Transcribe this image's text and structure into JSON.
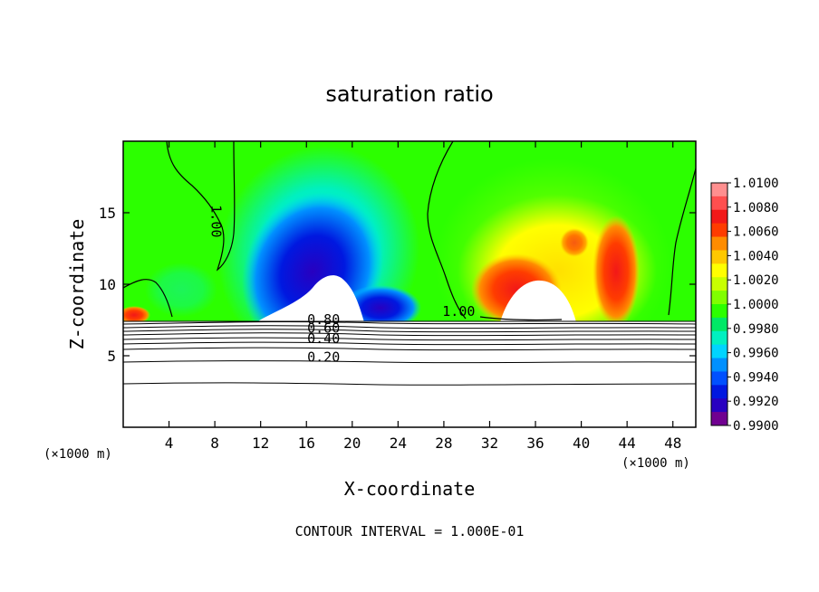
{
  "chart_data": {
    "type": "heatmap",
    "title": "saturation ratio",
    "xlabel": "X-coordinate",
    "ylabel": "Z-coordinate",
    "x_unit_left": "(×1000 m)",
    "x_unit_right": "(×1000 m)",
    "xlim": [
      0,
      50
    ],
    "ylim": [
      0,
      20
    ],
    "x_ticks": [
      4,
      8,
      12,
      16,
      20,
      24,
      28,
      32,
      36,
      40,
      44,
      48
    ],
    "x_tick_labels": [
      "4",
      "8",
      "12",
      "16",
      "20",
      "24",
      "28",
      "32",
      "36",
      "40",
      "44",
      "48"
    ],
    "y_ticks": [
      5,
      10,
      15
    ],
    "y_tick_labels": [
      "5",
      "10",
      "15"
    ],
    "colorbar": {
      "min": 0.99,
      "max": 1.01,
      "labels": [
        "1.0100",
        "1.0080",
        "1.0060",
        "1.0040",
        "1.0020",
        "1.0000",
        "0.9980",
        "0.9960",
        "0.9940",
        "0.9920",
        "0.9900"
      ],
      "colors": [
        "#ff8f8f",
        "#ff4f4f",
        "#f21818",
        "#ff3c00",
        "#ff8c00",
        "#ffc800",
        "#ffff00",
        "#c8ff00",
        "#80ff00",
        "#2cff00",
        "#00e866",
        "#00f0c0",
        "#00d4ff",
        "#0090ff",
        "#0050ff",
        "#0018e0",
        "#2800c0",
        "#700090"
      ]
    },
    "contour_labels": [
      {
        "text": "1.00",
        "x": 7.7,
        "z": 14.4
      },
      {
        "text": "1.00",
        "x": 29.3,
        "z": 7.8
      },
      {
        "text": "0.80",
        "x": 17.5,
        "z": 7.2
      },
      {
        "text": "0.60",
        "x": 17.5,
        "z": 6.6
      },
      {
        "text": "0.40",
        "x": 17.5,
        "z": 5.9
      },
      {
        "text": "0.20",
        "x": 17.5,
        "z": 4.6
      }
    ],
    "footer": "CONTOUR INTERVAL = 1.000E-01"
  }
}
